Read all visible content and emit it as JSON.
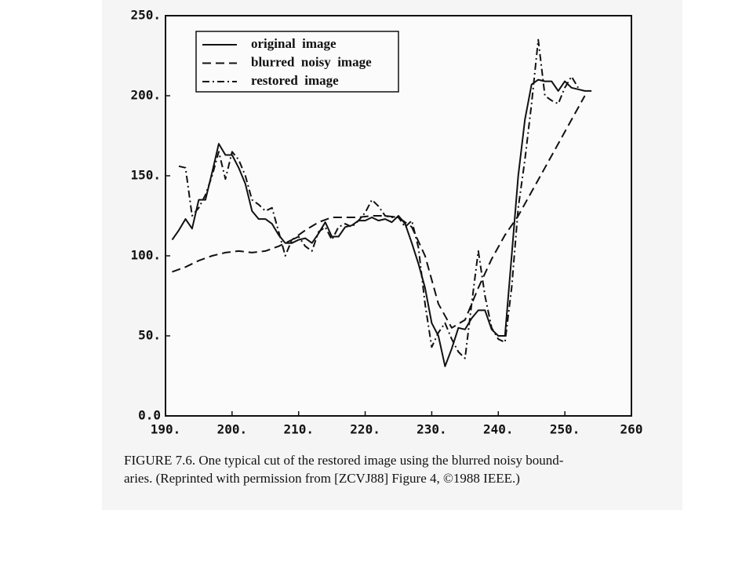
{
  "chart_data": {
    "type": "line",
    "xlim": [
      190,
      260
    ],
    "ylim": [
      0,
      250
    ],
    "xticks": [
      {
        "value": 190,
        "label": "190."
      },
      {
        "value": 200,
        "label": "200."
      },
      {
        "value": 210,
        "label": "210."
      },
      {
        "value": 220,
        "label": "220."
      },
      {
        "value": 230,
        "label": "230."
      },
      {
        "value": 240,
        "label": "240."
      },
      {
        "value": 250,
        "label": "250."
      },
      {
        "value": 260,
        "label": "260"
      }
    ],
    "yticks": [
      {
        "value": 0,
        "label": "0.0"
      },
      {
        "value": 50,
        "label": "50."
      },
      {
        "value": 100,
        "label": "100."
      },
      {
        "value": 150,
        "label": "150."
      },
      {
        "value": 200,
        "label": "200."
      },
      {
        "value": 250,
        "label": "250."
      }
    ],
    "grid": false,
    "legend": "upper left",
    "series": [
      {
        "name": "original  image",
        "color": "#111111",
        "style": "solid",
        "x": [
          191,
          192,
          193,
          194,
          195,
          196,
          197,
          198,
          199,
          200,
          201,
          202,
          203,
          204,
          205,
          206,
          207,
          208,
          209,
          210,
          211,
          212,
          213,
          214,
          215,
          216,
          217,
          218,
          219,
          220,
          221,
          222,
          223,
          224,
          225,
          226,
          227,
          228,
          229,
          230,
          231,
          232,
          233,
          234,
          235,
          236,
          237,
          238,
          239,
          240,
          241,
          242,
          243,
          244,
          245,
          246,
          247,
          248,
          249,
          250,
          251,
          252,
          253,
          254
        ],
        "values": [
          110,
          116,
          123,
          117,
          135,
          135,
          152,
          170,
          163,
          163,
          155,
          145,
          128,
          123,
          123,
          120,
          113,
          108,
          108,
          110,
          111,
          108,
          114,
          121,
          112,
          112,
          118,
          119,
          122,
          122,
          124,
          122,
          123,
          121,
          125,
          120,
          108,
          95,
          80,
          58,
          50,
          31,
          42,
          55,
          54,
          61,
          66,
          66,
          54,
          50,
          50,
          100,
          150,
          185,
          207,
          210,
          209,
          209,
          203,
          209,
          205,
          204,
          203,
          203
        ]
      },
      {
        "name": "blurred  noisy  image",
        "color": "#111111",
        "style": "dashed",
        "x": [
          191,
          193,
          195,
          197,
          199,
          201,
          203,
          205,
          207,
          209,
          211,
          213,
          215,
          217,
          219,
          221,
          223,
          225,
          227,
          229,
          231,
          233,
          235,
          237,
          239,
          241,
          243,
          245,
          247,
          249,
          251,
          253
        ],
        "values": [
          90,
          93,
          97,
          100,
          102,
          103,
          102,
          103,
          106,
          110,
          116,
          121,
          124,
          124,
          124,
          125,
          125,
          124,
          118,
          100,
          70,
          55,
          60,
          80,
          98,
          113,
          125,
          140,
          155,
          170,
          185,
          200
        ]
      },
      {
        "name": "restored  image",
        "color": "#111111",
        "style": "dashdot",
        "x": [
          192,
          193,
          194,
          195,
          196,
          197,
          198,
          199,
          200,
          201,
          202,
          203,
          204,
          205,
          206,
          207,
          208,
          209,
          210,
          211,
          212,
          213,
          214,
          215,
          216,
          217,
          218,
          219,
          220,
          221,
          222,
          223,
          224,
          225,
          226,
          227,
          228,
          229,
          230,
          231,
          232,
          233,
          234,
          235,
          236,
          237,
          238,
          239,
          240,
          241,
          242,
          243,
          244,
          245,
          246,
          247,
          248,
          249,
          250,
          251,
          252
        ],
        "values": [
          156,
          155,
          125,
          130,
          138,
          150,
          165,
          148,
          165,
          160,
          150,
          135,
          132,
          128,
          130,
          115,
          100,
          110,
          112,
          106,
          103,
          115,
          118,
          110,
          118,
          120,
          118,
          122,
          127,
          135,
          131,
          125,
          124,
          124,
          118,
          122,
          105,
          70,
          43,
          52,
          58,
          48,
          40,
          36,
          70,
          103,
          75,
          55,
          48,
          46,
          80,
          130,
          160,
          195,
          235,
          200,
          197,
          195,
          205,
          212,
          205
        ]
      }
    ],
    "caption": [
      "FIGURE 7.6. One typical cut of the restored image using the blurred noisy bound-",
      "aries. (Reprinted with permission from [ZCVJ88] Figure 4, ©1988 IEEE.)"
    ]
  }
}
